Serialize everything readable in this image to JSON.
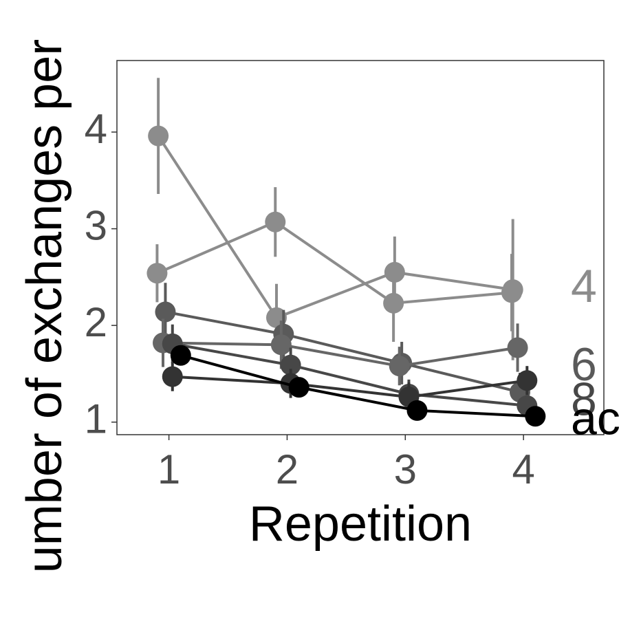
{
  "chart_data": {
    "type": "line",
    "y_label": "umber of exchanges per",
    "x_label": "Repetition",
    "x": [
      1,
      2,
      3,
      4
    ],
    "xlim": [
      0.56,
      4.68
    ],
    "xticks": [
      1,
      2,
      3,
      4
    ],
    "ylim": [
      0.87,
      4.74
    ],
    "yticks": [
      1,
      2,
      3,
      4
    ],
    "series": [
      {
        "name": "4",
        "color": "#8c8c8c",
        "values": [
          3.96,
          2.08,
          2.55,
          2.37
        ],
        "errors": [
          0.6,
          0.35,
          0.37,
          0.73
        ]
      },
      {
        "color": "#8c8c8c",
        "values": [
          2.54,
          3.07,
          2.23,
          2.34
        ],
        "errors": [
          0.3,
          0.36,
          0.4,
          0.4
        ]
      },
      {
        "name": "6",
        "color": "#5a5a5a",
        "values": [
          2.14,
          1.91,
          1.61,
          1.31
        ],
        "errors": [
          0.3,
          0.25,
          0.22,
          0.2
        ]
      },
      {
        "color": "#666666",
        "values": [
          1.82,
          1.8,
          1.58,
          1.77
        ],
        "errors": [
          0.25,
          0.25,
          0.2,
          0.25
        ]
      },
      {
        "name": "8",
        "color": "#474747",
        "values": [
          1.81,
          1.59,
          1.29,
          1.17
        ],
        "errors": [
          0.2,
          0.18,
          0.15,
          0.1
        ]
      },
      {
        "color": "#333333",
        "values": [
          1.47,
          1.4,
          1.26,
          1.43
        ],
        "errors": [
          0.15,
          0.15,
          0.15,
          0.15
        ]
      },
      {
        "name": "ac",
        "color": "#000000",
        "values": [
          1.69,
          1.36,
          1.12,
          1.06
        ],
        "errors": [
          0.1,
          0.08,
          0.05,
          0.03
        ]
      }
    ]
  }
}
